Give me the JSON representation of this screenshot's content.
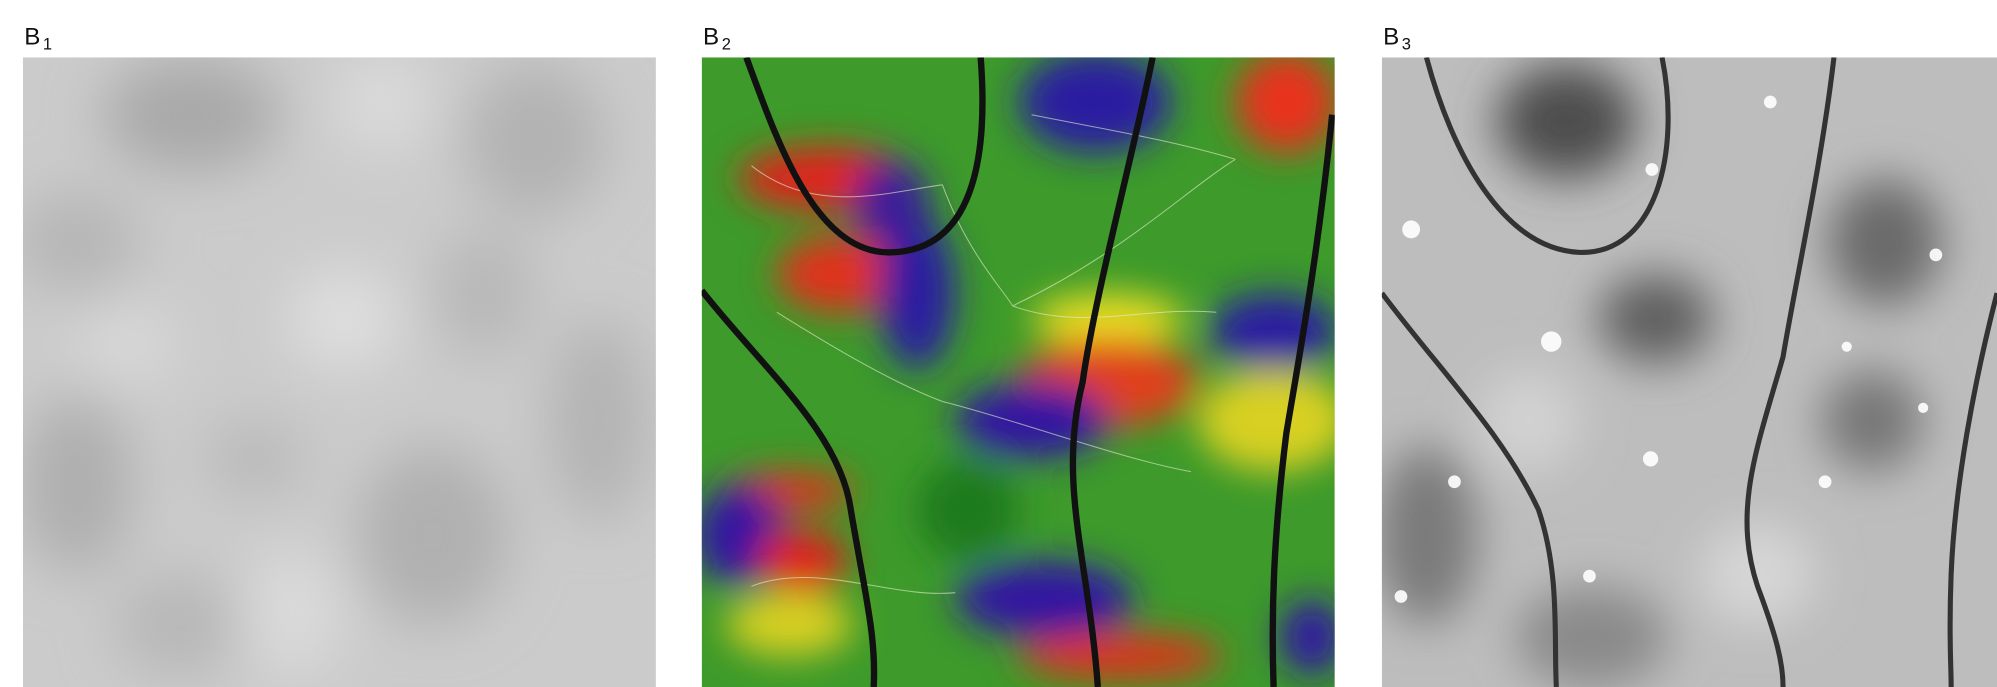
{
  "panels": [
    {
      "letter": "B",
      "subscript": "1"
    },
    {
      "letter": "B",
      "subscript": "2"
    },
    {
      "letter": "B",
      "subscript": "3"
    }
  ]
}
